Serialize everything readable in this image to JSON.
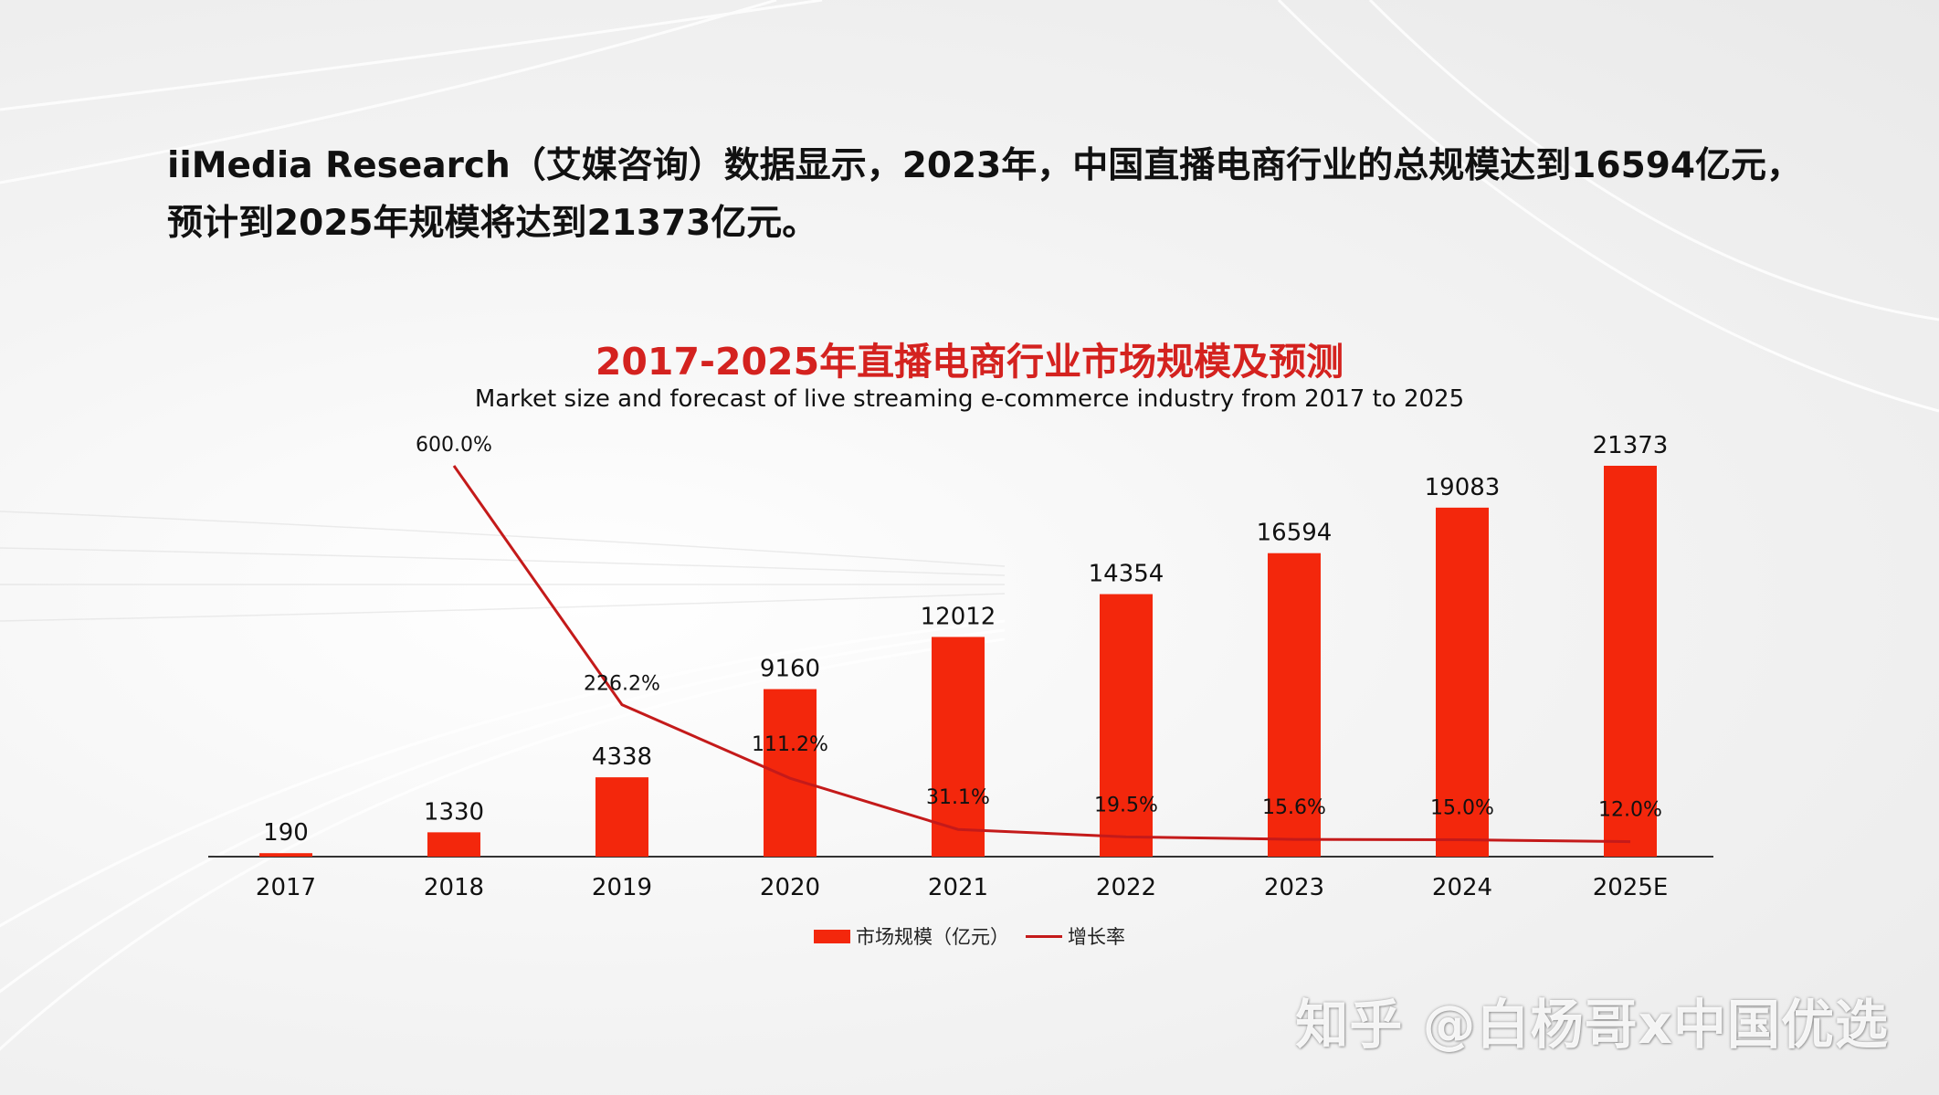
{
  "intro": {
    "line1": "iiMedia Research（艾媒咨询）数据显示，2023年，中国直播电商行业的总规模达到16594亿元，",
    "line2": "预计到2025年规模将达到21373亿元。"
  },
  "watermark": "知乎 @白杨哥x中国优选",
  "colors": {
    "bar": "#f3270c",
    "line": "#c41a1a",
    "title": "#d4221f"
  },
  "chart_data": {
    "type": "bar",
    "title": "2017-2025年直播电商行业市场规模及预测",
    "subtitle": "Market size and forecast of live streaming e-commerce industry from 2017 to 2025",
    "categories": [
      "2017",
      "2018",
      "2019",
      "2020",
      "2021",
      "2022",
      "2023",
      "2024",
      "2025E"
    ],
    "series": [
      {
        "name": "市场规模（亿元）",
        "kind": "bar",
        "values": [
          190,
          1330,
          4338,
          9160,
          12012,
          14354,
          16594,
          19083,
          21373
        ],
        "labels": [
          "190",
          "1330",
          "4338",
          "9160",
          "12012",
          "14354",
          "16594",
          "19083",
          "21373"
        ]
      },
      {
        "name": "增长率",
        "kind": "line",
        "values": [
          null,
          600.0,
          226.2,
          111.2,
          31.1,
          19.5,
          15.6,
          15.0,
          12.0
        ],
        "labels": [
          "",
          "600.0%",
          "226.2%",
          "111.2%",
          "31.1%",
          "19.5%",
          "15.6%",
          "15.0%",
          "12.0%"
        ]
      }
    ],
    "legend_position": "bottom-center",
    "grid": false
  }
}
